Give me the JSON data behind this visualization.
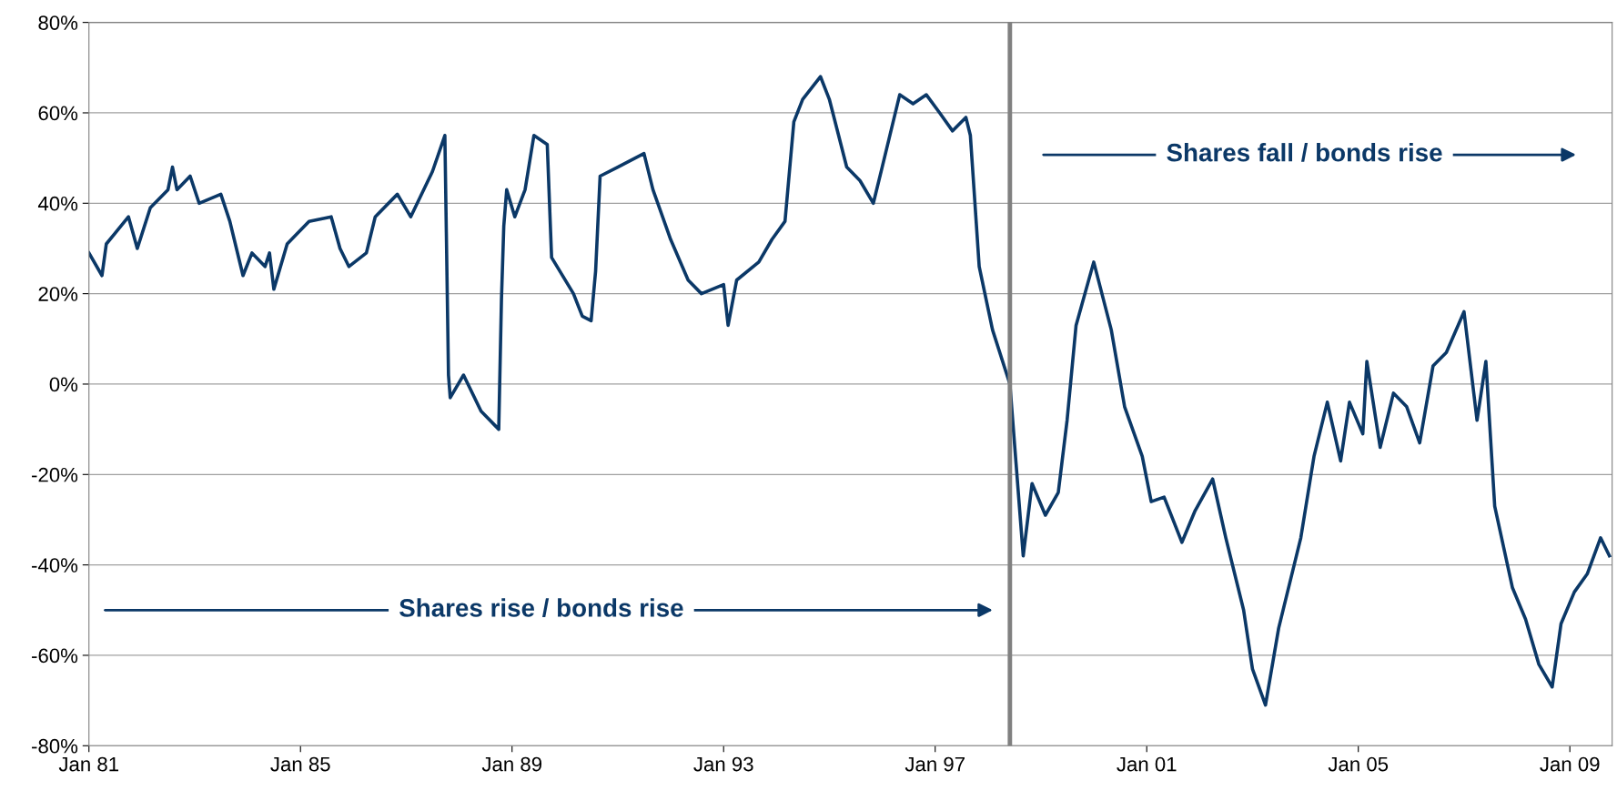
{
  "chart_data": {
    "type": "line",
    "x": [
      "1981-01",
      "1981-04",
      "1981-05",
      "1981-10",
      "1981-12",
      "1982-03",
      "1982-07",
      "1982-08",
      "1982-09",
      "1982-12",
      "1983-02",
      "1983-07",
      "1983-09",
      "1983-12",
      "1984-02",
      "1984-05",
      "1984-06",
      "1984-07",
      "1984-10",
      "1985-03",
      "1985-08",
      "1985-10",
      "1985-12",
      "1986-04",
      "1986-06",
      "1986-11",
      "1987-02",
      "1987-07",
      "1987-09-25",
      "1987-10-20",
      "1987-11",
      "1988-02",
      "1988-06",
      "1988-10",
      "1988-10-20",
      "1988-11-05",
      "1988-11-25",
      "1989-01-20",
      "1989-04",
      "1989-06",
      "1989-09",
      "1989-10",
      "1990-03",
      "1990-05",
      "1990-07",
      "1990-08",
      "1990-09",
      "1991-01",
      "1991-07",
      "1991-09",
      "1992-01",
      "1992-05",
      "1992-08",
      "1993-01",
      "1993-02",
      "1993-04",
      "1993-09",
      "1993-12",
      "1994-03",
      "1994-05",
      "1994-07",
      "1994-11",
      "1995-01",
      "1995-05",
      "1995-08",
      "1995-11",
      "1996-01",
      "1996-05",
      "1996-08",
      "1996-11",
      "1997-02",
      "1997-05",
      "1997-08",
      "1997-09",
      "1997-11",
      "1998-02",
      "1998-06",
      "1998-09",
      "1998-11",
      "1999-02",
      "1999-05",
      "1999-07",
      "1999-09",
      "2000-01",
      "2000-05",
      "2000-08",
      "2000-12",
      "2001-02",
      "2001-05",
      "2001-09",
      "2001-12",
      "2002-04",
      "2002-07",
      "2002-11",
      "2003-01",
      "2003-04",
      "2003-07",
      "2003-12",
      "2004-03",
      "2004-06",
      "2004-09",
      "2004-11",
      "2005-02",
      "2005-03",
      "2005-06",
      "2005-09",
      "2005-12",
      "2006-03",
      "2006-06",
      "2006-09",
      "2007-01",
      "2007-04",
      "2007-06",
      "2007-08",
      "2007-12",
      "2008-03",
      "2008-06",
      "2008-09",
      "2008-11",
      "2009-02",
      "2009-05",
      "2009-08",
      "2009-10"
    ],
    "series": [
      {
        "color": "#0b3867",
        "values": [
          29,
          24,
          31,
          37,
          30,
          39,
          43,
          48,
          43,
          46,
          40,
          42,
          36,
          24,
          29,
          26,
          29,
          21,
          31,
          36,
          37,
          30,
          26,
          29,
          37,
          42,
          37,
          47,
          55,
          2,
          -3,
          2,
          -6,
          -10,
          19,
          35,
          43,
          37,
          43,
          55,
          53,
          28,
          20,
          15,
          14,
          25,
          46,
          48,
          51,
          43,
          32,
          23,
          20,
          22,
          13,
          23,
          27,
          32,
          36,
          58,
          63,
          68,
          63,
          48,
          45,
          40,
          48,
          64,
          62,
          64,
          60,
          56,
          59,
          55,
          26,
          12,
          0,
          -38,
          -22,
          -29,
          -24,
          -8,
          13,
          27,
          12,
          -5,
          -16,
          -26,
          -25,
          -35,
          -28,
          -21,
          -34,
          -50,
          -63,
          -71,
          -54,
          -34,
          -16,
          -4,
          -17,
          -4,
          -11,
          5,
          -14,
          -2,
          -5,
          -13,
          4,
          7,
          16,
          -8,
          5,
          -27,
          -45,
          -52,
          -62,
          -67,
          -53,
          -46,
          -42,
          -34,
          -38
        ]
      }
    ],
    "xlim": [
      "1981-01",
      "2009-10-20"
    ],
    "xticks": [
      {
        "value": "1981-01",
        "label": "Jan 81"
      },
      {
        "value": "1985-01",
        "label": "Jan 85"
      },
      {
        "value": "1989-01",
        "label": "Jan 89"
      },
      {
        "value": "1993-01",
        "label": "Jan 93"
      },
      {
        "value": "1997-01",
        "label": "Jan 97"
      },
      {
        "value": "2001-01",
        "label": "Jan 01"
      },
      {
        "value": "2005-01",
        "label": "Jan 05"
      },
      {
        "value": "2009-01",
        "label": "Jan 09"
      }
    ],
    "ylim": [
      -80,
      80
    ],
    "yticks": [
      {
        "value": -80,
        "label": "-80%"
      },
      {
        "value": -60,
        "label": "-60%"
      },
      {
        "value": -40,
        "label": "-40%"
      },
      {
        "value": -20,
        "label": "-20%"
      },
      {
        "value": 0,
        "label": "0%"
      },
      {
        "value": 20,
        "label": "20%"
      },
      {
        "value": 40,
        "label": "40%"
      },
      {
        "value": 60,
        "label": "60%"
      },
      {
        "value": 80,
        "label": "80%"
      }
    ],
    "grid": "y",
    "legend": false,
    "ref_lines": [
      {
        "axis": "x",
        "value": "1998-06",
        "color": "#808080"
      }
    ],
    "annotations": [
      "Shares rise / bonds rise",
      "Shares fall / bonds rise"
    ]
  }
}
